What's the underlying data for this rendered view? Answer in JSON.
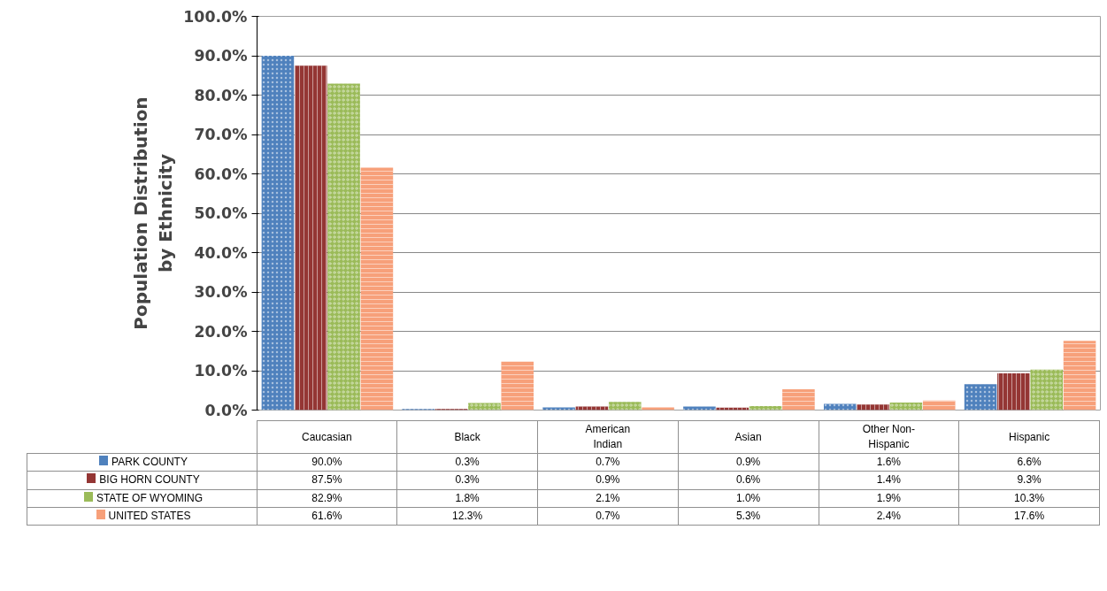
{
  "chart_data": {
    "type": "bar",
    "ylabel": "Population Distribution\nby Ethnicity",
    "categories": [
      "Caucasian",
      "Black",
      "American\nIndian",
      "Asian",
      "Other Non-\nHispanic",
      "Hispanic"
    ],
    "series": [
      {
        "name": "PARK COUNTY",
        "color": "#4f81bd",
        "values": [
          90.0,
          0.3,
          0.7,
          0.9,
          1.6,
          6.6
        ],
        "value_labels": [
          "90.0%",
          "0.3%",
          "0.7%",
          "0.9%",
          "1.6%",
          "6.6%"
        ]
      },
      {
        "name": "BIG HORN COUNTY",
        "color": "#943634",
        "values": [
          87.5,
          0.3,
          0.9,
          0.6,
          1.4,
          9.3
        ],
        "value_labels": [
          "87.5%",
          "0.3%",
          "0.9%",
          "0.6%",
          "1.4%",
          "9.3%"
        ]
      },
      {
        "name": "STATE OF WYOMING",
        "color": "#9bbb59",
        "values": [
          82.9,
          1.8,
          2.1,
          1.0,
          1.9,
          10.3
        ],
        "value_labels": [
          "82.9%",
          "1.8%",
          "2.1%",
          "1.0%",
          "1.9%",
          "10.3%"
        ]
      },
      {
        "name": "UNITED STATES",
        "color": "#f7a07a",
        "values": [
          61.6,
          12.3,
          0.7,
          5.3,
          2.4,
          17.6
        ],
        "value_labels": [
          "61.6%",
          "12.3%",
          "0.7%",
          "5.3%",
          "2.4%",
          "17.6%"
        ]
      }
    ],
    "ylim": [
      0,
      100
    ],
    "yticks": [
      {
        "value": 0,
        "label": "0.0%"
      },
      {
        "value": 10,
        "label": "10.0%"
      },
      {
        "value": 20,
        "label": "20.0%"
      },
      {
        "value": 30,
        "label": "30.0%"
      },
      {
        "value": 40,
        "label": "40.0%"
      },
      {
        "value": 50,
        "label": "50.0%"
      },
      {
        "value": 60,
        "label": "60.0%"
      },
      {
        "value": 70,
        "label": "70.0%"
      },
      {
        "value": 80,
        "label": "80.0%"
      },
      {
        "value": 90,
        "label": "90.0%"
      },
      {
        "value": 100,
        "label": "100.0%"
      }
    ],
    "grid": "y",
    "legend": "bottom"
  }
}
